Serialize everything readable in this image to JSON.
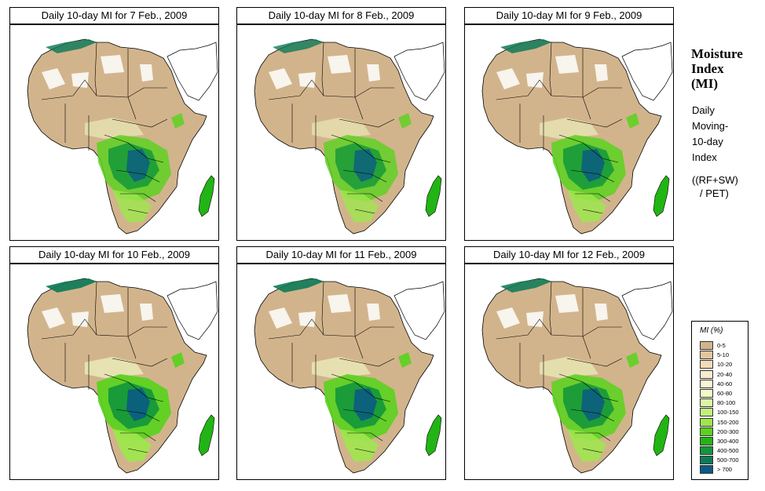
{
  "panels": [
    {
      "title": "Daily 10-day MI for  7 Feb., 2009",
      "wet_level": 0.55
    },
    {
      "title": "Daily 10-day MI for  8 Feb., 2009",
      "wet_level": 0.5
    },
    {
      "title": "Daily 10-day MI for  9 Feb., 2009",
      "wet_level": 0.6
    },
    {
      "title": "Daily 10-day MI for 10 Feb., 2009",
      "wet_level": 0.75
    },
    {
      "title": "Daily 10-day MI for  11 Feb., 2009",
      "wet_level": 0.7
    },
    {
      "title": "Daily 10-day MI for  12 Feb., 2009",
      "wet_level": 0.65
    }
  ],
  "side": {
    "title_lines": [
      "Moisture",
      "Index",
      "(MI)"
    ],
    "desc_lines": [
      "Daily",
      "Moving-",
      "10-day",
      "Index"
    ],
    "formula_lines": [
      "((RF+SW)",
      "/ PET)"
    ]
  },
  "legend": {
    "title": "MI (%)",
    "classes": [
      {
        "label": "0-5",
        "color": "#d2b48c"
      },
      {
        "label": "5-10",
        "color": "#e3c69c"
      },
      {
        "label": "10-20",
        "color": "#f2dcb8"
      },
      {
        "label": "20-40",
        "color": "#f8ebcf"
      },
      {
        "label": "40-60",
        "color": "#fbf6d2"
      },
      {
        "label": "60-80",
        "color": "#f2fbc6"
      },
      {
        "label": "80-100",
        "color": "#dcf6a6"
      },
      {
        "label": "100-150",
        "color": "#c2ef7e"
      },
      {
        "label": "150-200",
        "color": "#9ee64e"
      },
      {
        "label": "200-300",
        "color": "#5ad21e"
      },
      {
        "label": "300-400",
        "color": "#22b414"
      },
      {
        "label": "400-500",
        "color": "#12963a"
      },
      {
        "label": "500-700",
        "color": "#0e7a58"
      },
      {
        "label": "> 700",
        "color": "#0b5c82"
      }
    ]
  }
}
